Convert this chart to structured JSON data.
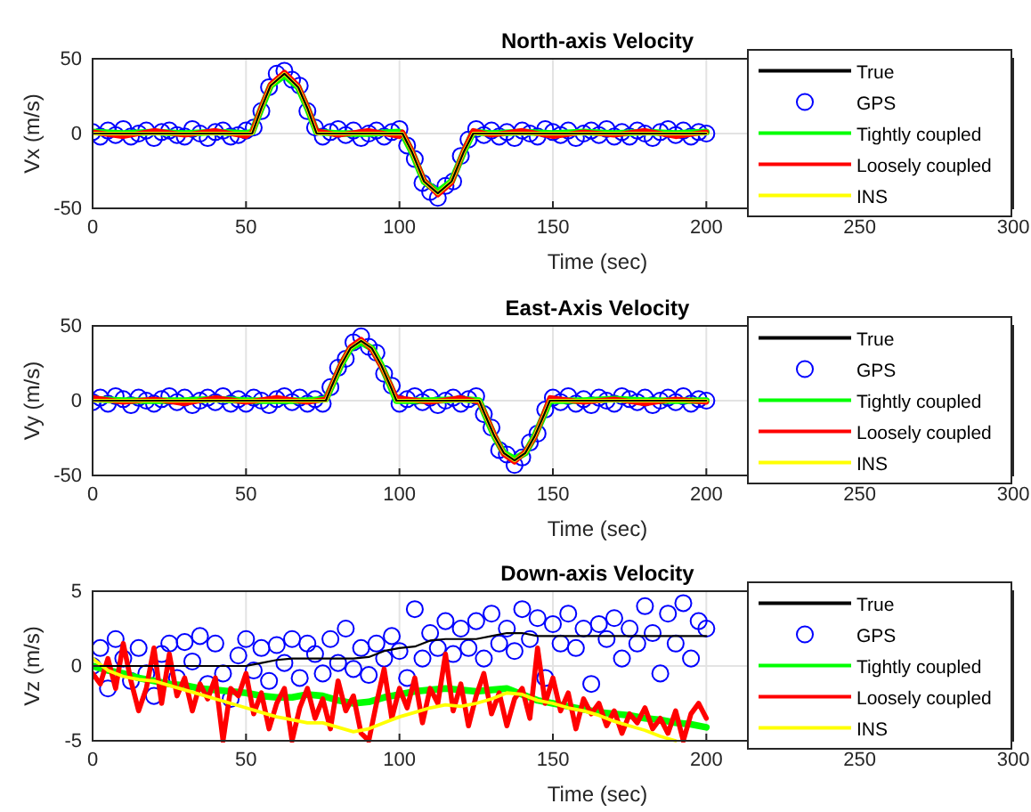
{
  "chart_data": [
    {
      "type": "line",
      "title": "North-axis Velocity",
      "xlabel": "Time (sec)",
      "ylabel": "Vx (m/s)",
      "xlim": [
        0,
        300
      ],
      "xticks": [
        0,
        50,
        100,
        150,
        200,
        250,
        300
      ],
      "ylim": [
        -50,
        50
      ],
      "yticks": [
        -50,
        0,
        50
      ],
      "grid": true,
      "legend": "right",
      "line_style": "solid",
      "x": [
        0,
        2.5,
        5,
        7.5,
        10,
        12.5,
        15,
        17.5,
        20,
        22.5,
        25,
        27.5,
        30,
        32.5,
        35,
        37.5,
        40,
        42.5,
        45,
        47.5,
        50,
        52.5,
        55,
        57.5,
        60,
        62.5,
        65,
        67.5,
        70,
        72.5,
        75,
        77.5,
        80,
        82.5,
        85,
        87.5,
        90,
        92.5,
        95,
        97.5,
        100,
        102.5,
        105,
        107.5,
        110,
        112.5,
        115,
        117.5,
        120,
        122.5,
        125,
        127.5,
        130,
        132.5,
        135,
        137.5,
        140,
        142.5,
        145,
        147.5,
        150,
        152.5,
        155,
        157.5,
        160,
        162.5,
        165,
        167.5,
        170,
        172.5,
        175,
        177.5,
        180,
        182.5,
        185,
        187.5,
        190,
        192.5,
        195,
        197.5,
        200
      ],
      "series": [
        {
          "name": "True",
          "color": "#000000",
          "x": [
            0,
            10,
            20,
            30,
            40,
            50,
            52,
            55,
            58,
            62.5,
            67,
            70,
            73,
            80,
            90,
            100,
            101,
            104,
            108,
            112.5,
            117,
            121,
            124,
            130,
            140,
            150,
            160,
            170,
            180,
            190,
            200
          ],
          "values": [
            0,
            0,
            0,
            0,
            0,
            0,
            0,
            17,
            32,
            40,
            31,
            17,
            0,
            0,
            0,
            0,
            0,
            -12,
            -32,
            -40,
            -32,
            -12,
            0,
            0,
            0,
            0,
            0,
            0,
            0,
            0,
            0
          ]
        },
        {
          "name": "GPS",
          "type": "scatter",
          "marker": "circle",
          "color": "#0000ff",
          "values": [
            1,
            -2,
            2,
            -1,
            3,
            -2,
            0,
            2,
            -3,
            1,
            2,
            -1,
            -2,
            3,
            0,
            -3,
            1,
            2,
            -2,
            -1,
            2,
            4,
            15,
            31,
            40,
            42,
            36,
            32,
            15,
            4,
            -2,
            1,
            3,
            -1,
            2,
            -3,
            0,
            2,
            -2,
            1,
            3,
            -8,
            -17,
            -33,
            -39,
            -43,
            -35,
            -32,
            -15,
            -4,
            3,
            -1,
            2,
            -2,
            1,
            -3,
            2,
            0,
            -2,
            3,
            1,
            -1,
            2,
            -3,
            0,
            2,
            -1,
            3,
            -2,
            1,
            -2,
            2,
            0,
            -3,
            1,
            3,
            -1,
            2,
            -2,
            1,
            0
          ]
        },
        {
          "name": "Tightly coupled",
          "color": "#00ff00",
          "x": [
            0,
            10,
            20,
            30,
            40,
            50,
            52,
            55,
            58,
            62.5,
            67,
            70,
            73,
            80,
            90,
            100,
            101,
            104,
            108,
            112.5,
            117,
            121,
            124,
            130,
            140,
            150,
            160,
            170,
            180,
            190,
            200
          ],
          "values": [
            1,
            0,
            1,
            0,
            1,
            0,
            1,
            17,
            32,
            39,
            31,
            17,
            1,
            0,
            0,
            1,
            0,
            -12,
            -32,
            -39,
            -32,
            -12,
            1,
            0,
            1,
            0,
            1,
            0,
            1,
            0,
            1
          ]
        },
        {
          "name": "Loosely coupled",
          "color": "#ff0000",
          "x": [
            0,
            10,
            20,
            30,
            40,
            50,
            52,
            55,
            58,
            62.5,
            67,
            70,
            73,
            80,
            90,
            100,
            101,
            104,
            108,
            112.5,
            117,
            121,
            124,
            130,
            140,
            150,
            160,
            170,
            180,
            190,
            200
          ],
          "values": [
            1,
            -2,
            2,
            -1,
            2,
            -2,
            1,
            18,
            33,
            41,
            32,
            18,
            2,
            -1,
            2,
            -2,
            1,
            -11,
            -31,
            -41,
            -33,
            -11,
            2,
            -1,
            2,
            -2,
            1,
            -1,
            2,
            -2,
            1
          ]
        },
        {
          "name": "INS",
          "color": "#ffff00",
          "x": [
            0,
            10,
            20,
            30,
            40,
            50,
            52,
            55,
            58,
            62.5,
            67,
            70,
            73,
            80,
            90,
            100,
            101,
            104,
            108,
            112.5,
            117,
            121,
            124,
            130,
            140,
            150,
            160,
            170,
            180,
            190,
            200
          ],
          "values": [
            0,
            0,
            0,
            0,
            0,
            0,
            0,
            17,
            32,
            40,
            31,
            17,
            0,
            0,
            0,
            0,
            0,
            -12,
            -32,
            -40,
            -32,
            -12,
            0,
            0,
            0,
            0,
            0,
            0,
            0,
            0,
            0
          ]
        }
      ]
    },
    {
      "type": "line",
      "title": "East-Axis Velocity",
      "xlabel": "Time (sec)",
      "ylabel": "Vy (m/s)",
      "xlim": [
        0,
        300
      ],
      "xticks": [
        0,
        50,
        100,
        150,
        200,
        250,
        300
      ],
      "ylim": [
        -50,
        50
      ],
      "yticks": [
        -50,
        0,
        50
      ],
      "grid": true,
      "legend": "right",
      "line_style": "solid",
      "x": [
        0,
        2.5,
        5,
        7.5,
        10,
        12.5,
        15,
        17.5,
        20,
        22.5,
        25,
        27.5,
        30,
        32.5,
        35,
        37.5,
        40,
        42.5,
        45,
        47.5,
        50,
        52.5,
        55,
        57.5,
        60,
        62.5,
        65,
        67.5,
        70,
        72.5,
        75,
        77.5,
        80,
        82.5,
        85,
        87.5,
        90,
        92.5,
        95,
        97.5,
        100,
        102.5,
        105,
        107.5,
        110,
        112.5,
        115,
        117.5,
        120,
        122.5,
        125,
        127.5,
        130,
        132.5,
        135,
        137.5,
        140,
        142.5,
        145,
        147.5,
        150,
        152.5,
        155,
        157.5,
        160,
        162.5,
        165,
        167.5,
        170,
        172.5,
        175,
        177.5,
        180,
        182.5,
        185,
        187.5,
        190,
        192.5,
        195,
        197.5,
        200
      ],
      "series": [
        {
          "name": "True",
          "color": "#000000",
          "x": [
            0,
            10,
            20,
            30,
            40,
            50,
            60,
            70,
            76,
            78,
            81,
            84,
            87.5,
            91,
            94,
            97,
            99,
            110,
            120,
            126,
            128,
            131,
            134,
            137.5,
            141,
            144,
            147,
            149,
            160,
            170,
            180,
            190,
            200
          ],
          "values": [
            0,
            0,
            0,
            0,
            0,
            0,
            0,
            0,
            0,
            10,
            24,
            35,
            40,
            35,
            24,
            10,
            0,
            0,
            0,
            0,
            -10,
            -24,
            -35,
            -40,
            -35,
            -24,
            -10,
            0,
            0,
            0,
            0,
            0,
            0
          ]
        },
        {
          "name": "GPS",
          "type": "scatter",
          "marker": "circle",
          "color": "#0000ff",
          "values": [
            -1,
            2,
            -2,
            3,
            1,
            -3,
            2,
            0,
            -2,
            1,
            3,
            -1,
            2,
            -3,
            0,
            2,
            -1,
            3,
            -2,
            1,
            -2,
            2,
            0,
            -3,
            1,
            3,
            -1,
            2,
            -2,
            1,
            -2,
            9,
            22,
            28,
            39,
            43,
            36,
            32,
            18,
            10,
            -2,
            1,
            3,
            -1,
            2,
            -3,
            0,
            2,
            -2,
            1,
            3,
            -9,
            -18,
            -33,
            -36,
            -43,
            -38,
            -28,
            -22,
            -6,
            2,
            -1,
            3,
            -2,
            1,
            -3,
            2,
            0,
            -2,
            3,
            1,
            -1,
            2,
            -3,
            0,
            2,
            -1,
            3,
            -2,
            1,
            0
          ]
        },
        {
          "name": "Tightly coupled",
          "color": "#00ff00",
          "x": [
            0,
            10,
            20,
            30,
            40,
            50,
            60,
            70,
            76,
            78,
            81,
            84,
            87.5,
            91,
            94,
            97,
            99,
            110,
            120,
            126,
            128,
            131,
            134,
            137.5,
            141,
            144,
            147,
            149,
            160,
            170,
            180,
            190,
            200
          ],
          "values": [
            1,
            0,
            0,
            0,
            1,
            0,
            0,
            0,
            1,
            10,
            24,
            35,
            39,
            35,
            24,
            10,
            0,
            0,
            1,
            0,
            -10,
            -24,
            -35,
            -39,
            -35,
            -24,
            -10,
            0,
            0,
            1,
            0,
            0,
            0
          ]
        },
        {
          "name": "Loosely coupled",
          "color": "#ff0000",
          "x": [
            0,
            10,
            20,
            30,
            40,
            50,
            60,
            70,
            76,
            78,
            81,
            84,
            87.5,
            91,
            94,
            97,
            99,
            110,
            120,
            126,
            128,
            131,
            134,
            137.5,
            141,
            144,
            147,
            149,
            160,
            170,
            180,
            190,
            200
          ],
          "values": [
            2,
            -1,
            1,
            -2,
            2,
            -1,
            2,
            -1,
            1,
            11,
            25,
            36,
            41,
            34,
            23,
            11,
            2,
            -1,
            2,
            -1,
            -9,
            -23,
            -36,
            -41,
            -34,
            -25,
            -9,
            2,
            -1,
            1,
            -2,
            1,
            -1
          ]
        },
        {
          "name": "INS",
          "color": "#ffff00",
          "x": [
            0,
            10,
            20,
            30,
            40,
            50,
            60,
            70,
            76,
            78,
            81,
            84,
            87.5,
            91,
            94,
            97,
            99,
            110,
            120,
            126,
            128,
            131,
            134,
            137.5,
            141,
            144,
            147,
            149,
            160,
            170,
            180,
            190,
            200
          ],
          "values": [
            0,
            0,
            0,
            0,
            0,
            0,
            0,
            0,
            0,
            10,
            24,
            35,
            40,
            35,
            24,
            10,
            0,
            0,
            0,
            0,
            -10,
            -24,
            -35,
            -40,
            -35,
            -24,
            -10,
            0,
            0,
            0,
            0,
            0,
            0
          ]
        }
      ]
    },
    {
      "type": "line",
      "title": "Down-axis Velocity",
      "xlabel": "Time (sec)",
      "ylabel": "Vz (m/s)",
      "xlim": [
        0,
        300
      ],
      "xticks": [
        0,
        50,
        100,
        150,
        200,
        250,
        300
      ],
      "ylim": [
        -5,
        5
      ],
      "yticks": [
        -5,
        0,
        5
      ],
      "grid": true,
      "legend": "right",
      "line_style": "solid",
      "x": [
        0,
        2.5,
        5,
        7.5,
        10,
        12.5,
        15,
        17.5,
        20,
        22.5,
        25,
        27.5,
        30,
        32.5,
        35,
        37.5,
        40,
        42.5,
        45,
        47.5,
        50,
        52.5,
        55,
        57.5,
        60,
        62.5,
        65,
        67.5,
        70,
        72.5,
        75,
        77.5,
        80,
        82.5,
        85,
        87.5,
        90,
        92.5,
        95,
        97.5,
        100,
        102.5,
        105,
        107.5,
        110,
        112.5,
        115,
        117.5,
        120,
        122.5,
        125,
        127.5,
        130,
        132.5,
        135,
        137.5,
        140,
        142.5,
        145,
        147.5,
        150,
        152.5,
        155,
        157.5,
        160,
        162.5,
        165,
        167.5,
        170,
        172.5,
        175,
        177.5,
        180,
        182.5,
        185,
        187.5,
        190,
        192.5,
        195,
        197.5,
        200
      ],
      "series": [
        {
          "name": "True",
          "color": "#000000",
          "x": [
            0,
            5,
            10,
            15,
            20,
            25,
            30,
            35,
            40,
            45,
            50,
            55,
            60,
            65,
            70,
            75,
            80,
            85,
            90,
            95,
            100,
            105,
            110,
            115,
            120,
            125,
            130,
            135,
            140,
            145,
            150,
            155,
            160,
            165,
            170,
            175,
            180,
            185,
            190,
            195,
            200
          ],
          "values": [
            0,
            0,
            0,
            0,
            0,
            0,
            0,
            0,
            0,
            0,
            0,
            0.2,
            0.4,
            0.5,
            0.5,
            0.5,
            0.5,
            0.5,
            0.6,
            1.0,
            1.2,
            1.3,
            1.7,
            1.8,
            1.8,
            1.8,
            2.0,
            2.2,
            2.2,
            2.0,
            2.0,
            2.0,
            2.0,
            2.0,
            2.0,
            2.0,
            2.0,
            2.0,
            2.0,
            2.0,
            2.0
          ]
        },
        {
          "name": "GPS",
          "type": "scatter",
          "marker": "circle",
          "color": "#0000ff",
          "values": [
            0,
            1.2,
            -1.5,
            1.8,
            0.5,
            -1,
            1.2,
            -0.5,
            -2,
            0.8,
            1.5,
            -0.8,
            1.6,
            0.3,
            2,
            -1.2,
            1.5,
            -0.5,
            -2.2,
            0.7,
            1.8,
            -0.3,
            1.2,
            -1,
            1.4,
            0.2,
            1.8,
            -0.8,
            1.5,
            0.8,
            -0.5,
            1.8,
            0.2,
            2.5,
            -0.2,
            1.2,
            -0.6,
            1.5,
            0.5,
            2,
            1,
            -0.8,
            3.8,
            0.5,
            2.2,
            1.2,
            3,
            0.8,
            2.5,
            1.2,
            3,
            0.5,
            3.5,
            1.5,
            2.5,
            1,
            3.8,
            1.8,
            3.2,
            -0.8,
            2.8,
            1.5,
            3.5,
            1.2,
            2.5,
            -1.2,
            2.8,
            1.8,
            3.2,
            0.5,
            2.5,
            1.5,
            4,
            2.2,
            -0.5,
            3.5,
            1.5,
            4.2,
            0.5,
            3,
            2.5
          ]
        },
        {
          "name": "Tightly coupled",
          "color": "#00ff00",
          "x": [
            0,
            5,
            10,
            15,
            20,
            25,
            30,
            35,
            40,
            45,
            50,
            55,
            60,
            65,
            70,
            75,
            80,
            85,
            90,
            95,
            100,
            105,
            110,
            115,
            120,
            125,
            130,
            135,
            140,
            145,
            150,
            155,
            160,
            165,
            170,
            175,
            180,
            185,
            190,
            195,
            200
          ],
          "values": [
            0,
            -0.3,
            -0.5,
            -0.8,
            -1.0,
            -1.2,
            -1.3,
            -1.5,
            -1.6,
            -1.7,
            -1.8,
            -2.0,
            -2.1,
            -2.1,
            -1.9,
            -2.0,
            -2.3,
            -2.5,
            -2.4,
            -2.1,
            -1.9,
            -1.7,
            -1.6,
            -1.5,
            -1.6,
            -1.7,
            -1.6,
            -1.5,
            -1.9,
            -2.3,
            -2.5,
            -2.7,
            -2.9,
            -3.1,
            -3.2,
            -3.3,
            -3.5,
            -3.6,
            -3.8,
            -3.9,
            -4.1
          ]
        },
        {
          "name": "Loosely coupled",
          "color": "#ff0000",
          "values": [
            -0.5,
            -1.2,
            0.5,
            -1.5,
            1.5,
            -1,
            -3,
            -1.5,
            1.2,
            -2.5,
            0.8,
            -2,
            -0.8,
            -3,
            -1.2,
            -2.2,
            -0.8,
            -5,
            -1.5,
            -2,
            -0.5,
            -3.2,
            -1.8,
            -4.2,
            -2.5,
            -1.5,
            -5,
            -2.8,
            -1.5,
            -3.5,
            -2.2,
            -4.2,
            -1,
            -3,
            -2,
            -4.5,
            -5,
            -2.5,
            -0.2,
            -3.5,
            -1.5,
            -2.8,
            -0.8,
            -3.8,
            -1.5,
            -2.5,
            0.8,
            -3,
            -1.2,
            -4,
            -2,
            -0.5,
            -3.2,
            -1.8,
            -4,
            -2.2,
            -1.5,
            -3.5,
            1.2,
            -2.5,
            -0.8,
            -3,
            -1.8,
            -4.2,
            -2.2,
            -3.2,
            -2.5,
            -4,
            -3,
            -4.5,
            -3.2,
            -3.8,
            -2.8,
            -4.2,
            -3.5,
            -4.5,
            -3,
            -5,
            -3.2,
            -2.5,
            -3.5
          ]
        },
        {
          "name": "INS",
          "color": "#ffff00",
          "x": [
            0,
            5,
            10,
            15,
            20,
            25,
            30,
            35,
            40,
            45,
            50,
            55,
            60,
            65,
            70,
            75,
            80,
            85,
            90,
            95,
            100,
            105,
            110,
            115,
            120,
            125,
            130,
            135,
            140,
            145,
            150,
            155,
            160,
            165,
            170,
            175,
            180,
            185,
            190
          ],
          "values": [
            0.5,
            -0.3,
            -0.7,
            -0.9,
            -1.0,
            -1.3,
            -1.6,
            -1.9,
            -2.2,
            -2.5,
            -2.8,
            -3.1,
            -3.4,
            -3.6,
            -3.8,
            -3.8,
            -4.1,
            -4.4,
            -4.2,
            -3.8,
            -3.4,
            -3.1,
            -2.8,
            -2.6,
            -2.7,
            -2.5,
            -2.2,
            -1.8,
            -1.9,
            -2.3,
            -2.5,
            -2.8,
            -3.0,
            -3.3,
            -3.7,
            -4.0,
            -4.3,
            -4.7,
            -5.0
          ]
        }
      ]
    }
  ]
}
